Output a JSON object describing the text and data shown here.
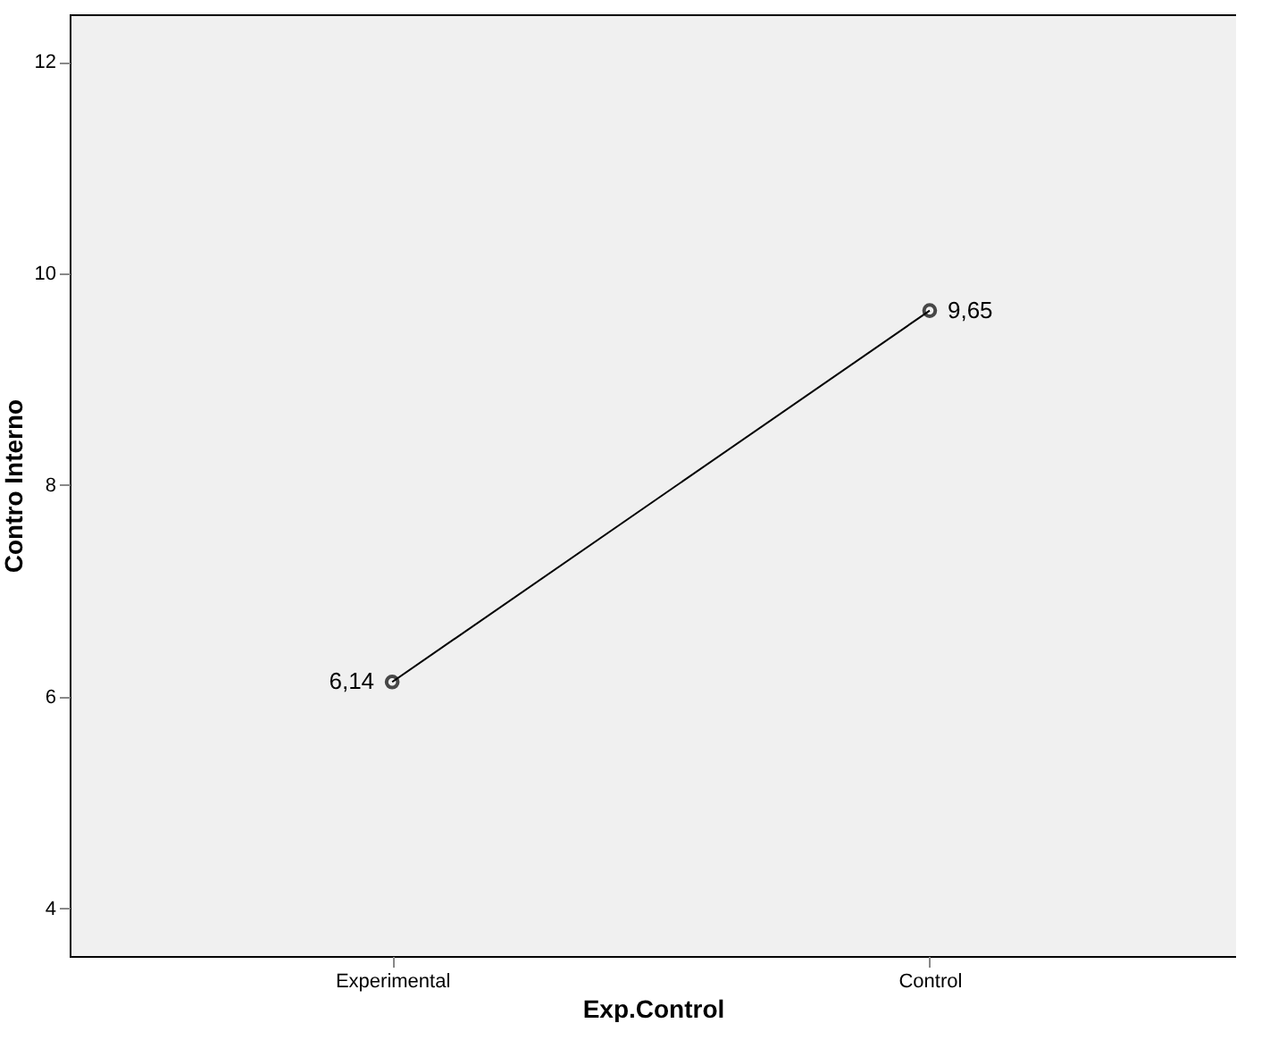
{
  "chart_data": {
    "type": "line",
    "xlabel": "Exp.Control",
    "ylabel": "Contro Interno",
    "categories": [
      "Experimental",
      "Control"
    ],
    "series": [
      {
        "color": "#000000",
        "values": [
          6.14,
          9.65
        ],
        "value_labels": [
          "6,14",
          "9,65"
        ]
      }
    ],
    "ylim": [
      3.55,
      12.45
    ],
    "yticks": [
      4,
      6,
      8,
      10,
      12
    ],
    "marker": "circle",
    "line_style": "solid",
    "grid": false,
    "legend": false
  }
}
